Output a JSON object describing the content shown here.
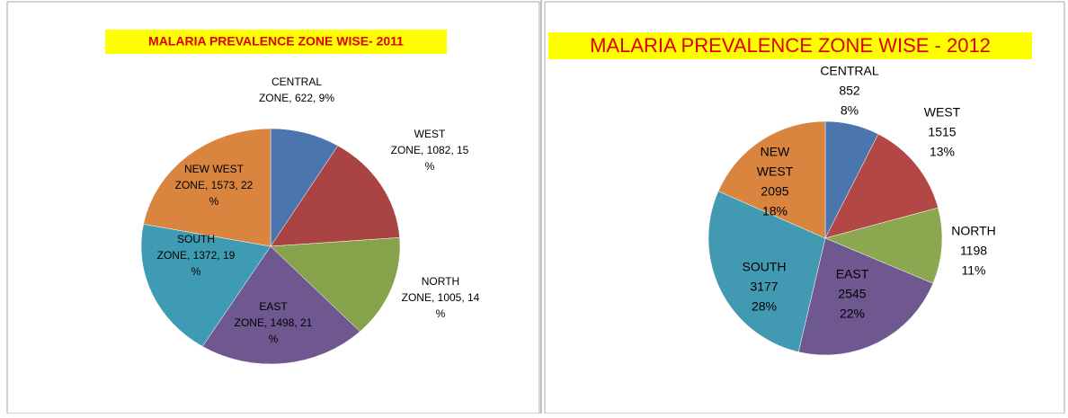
{
  "chart_data": [
    {
      "type": "pie",
      "title": "MALARIA PREVALENCE ZONE WISE- 2011",
      "labels": [
        [
          "CENTRAL",
          "ZONE, 622, 9%"
        ],
        [
          "WEST",
          "ZONE, 1082, 15",
          "%"
        ],
        [
          "NORTH",
          "ZONE, 1005, 14",
          "%"
        ],
        [
          "EAST",
          "ZONE, 1498, 21",
          "%"
        ],
        [
          "SOUTH",
          "ZONE, 1372, 19",
          "%"
        ],
        [
          "NEW WEST",
          "ZONE, 1573, 22",
          "%"
        ]
      ],
      "values": [
        622,
        1082,
        1005,
        1498,
        1372,
        1573
      ],
      "colors": [
        "#4a76ad",
        "#a94442",
        "#86a24b",
        "#6f5790",
        "#3f9bb4",
        "#d9843f"
      ]
    },
    {
      "type": "pie",
      "title": "MALARIA PREVALENCE ZONE WISE - 2012",
      "labels": [
        [
          "CENTRAL",
          "852",
          "8%"
        ],
        [
          "WEST",
          "1515",
          "13%"
        ],
        [
          "NORTH",
          "1198",
          "11%"
        ],
        [
          "EAST",
          "2545",
          "22%"
        ],
        [
          "SOUTH",
          "3177",
          "28%"
        ],
        [
          "NEW",
          "WEST",
          "2095",
          "18%"
        ]
      ],
      "values": [
        852,
        1515,
        1198,
        2545,
        3177,
        2095
      ],
      "colors": [
        "#4a76ad",
        "#b24745",
        "#8ba850",
        "#6f5790",
        "#4299b2",
        "#d9843f"
      ]
    }
  ]
}
